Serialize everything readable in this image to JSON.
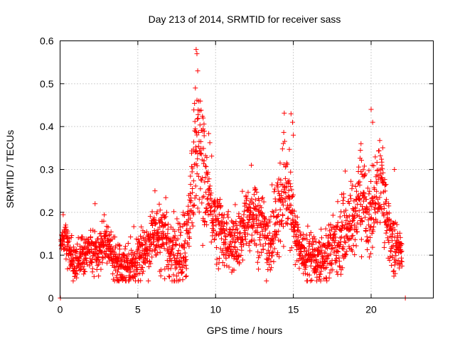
{
  "chart_data": {
    "type": "scatter",
    "title": "Day 213 of 2014, SRMTID for receiver sass",
    "xlabel": "GPS time / hours",
    "ylabel": "SRMTID / TECUs",
    "xlim": [
      0,
      24
    ],
    "ylim": [
      0,
      0.6
    ],
    "x_ticks": [
      0,
      5,
      10,
      15,
      20
    ],
    "x_tick_labels": [
      "0",
      "5",
      "10",
      "15",
      "20"
    ],
    "y_ticks": [
      0,
      0.1,
      0.2,
      0.3,
      0.4,
      0.5,
      0.6
    ],
    "y_tick_labels": [
      "0",
      "0.1",
      "0.2",
      "0.3",
      "0.4",
      "0.5",
      "0.6"
    ],
    "grid": true,
    "marker": "+",
    "series": [
      {
        "name": "SRMTID",
        "color": "#ff0000",
        "baseline_profile": {
          "x": [
            0,
            0.3,
            0.6,
            0.9,
            1.2,
            1.6,
            2.0,
            2.4,
            2.8,
            3.2,
            3.6,
            4.0,
            4.5,
            5.0,
            5.5,
            6.0,
            6.5,
            7.0,
            7.5,
            8.0,
            8.3,
            8.6,
            8.8,
            9.0,
            9.3,
            9.6,
            10.0,
            10.5,
            11.0,
            11.5,
            12.0,
            12.5,
            13.0,
            13.5,
            14.0,
            14.4,
            14.8,
            15.1,
            15.5,
            16.0,
            16.5,
            17.0,
            17.5,
            18.0,
            18.5,
            19.0,
            19.3,
            19.6,
            20.0,
            20.3,
            20.6,
            21.0,
            21.3,
            21.6,
            22.0,
            22.3,
            22.6
          ],
          "y": [
            0.12,
            0.15,
            0.11,
            0.08,
            0.09,
            0.1,
            0.12,
            0.11,
            0.13,
            0.12,
            0.09,
            0.08,
            0.08,
            0.09,
            0.11,
            0.15,
            0.14,
            0.12,
            0.1,
            0.1,
            0.2,
            0.3,
            0.38,
            0.33,
            0.28,
            0.22,
            0.18,
            0.15,
            0.12,
            0.13,
            0.18,
            0.2,
            0.16,
            0.12,
            0.2,
            0.25,
            0.22,
            0.15,
            0.11,
            0.1,
            0.09,
            0.1,
            0.12,
            0.14,
            0.17,
            0.19,
            0.25,
            0.22,
            0.18,
            0.25,
            0.27,
            0.2,
            0.13,
            0.12,
            0.1,
            0.09,
            0.09
          ]
        },
        "spread_profile": {
          "x": [
            0,
            5,
            8.3,
            8.8,
            9.5,
            10.5,
            12,
            14.5,
            15.5,
            19.5,
            20.5,
            21.5,
            22.6
          ],
          "y": [
            0.03,
            0.03,
            0.06,
            0.1,
            0.07,
            0.04,
            0.05,
            0.06,
            0.03,
            0.06,
            0.06,
            0.04,
            0.03
          ]
        },
        "point_count": 2200,
        "sample_step_hours": 0.01,
        "peaks": [
          {
            "x": 8.75,
            "y": 0.58
          },
          {
            "x": 8.8,
            "y": 0.57
          },
          {
            "x": 8.85,
            "y": 0.53
          },
          {
            "x": 8.7,
            "y": 0.49
          },
          {
            "x": 9.2,
            "y": 0.42
          },
          {
            "x": 12.3,
            "y": 0.31
          },
          {
            "x": 14.85,
            "y": 0.43
          },
          {
            "x": 14.95,
            "y": 0.41
          },
          {
            "x": 15.0,
            "y": 0.38
          },
          {
            "x": 20.0,
            "y": 0.44
          },
          {
            "x": 19.35,
            "y": 0.36
          },
          {
            "x": 20.1,
            "y": 0.41
          },
          {
            "x": 21.5,
            "y": 0.3
          },
          {
            "x": 2.25,
            "y": 0.22
          },
          {
            "x": 6.1,
            "y": 0.25
          },
          {
            "x": 0.02,
            "y": 0.0
          },
          {
            "x": 22.2,
            "y": 0.0
          }
        ]
      }
    ]
  }
}
